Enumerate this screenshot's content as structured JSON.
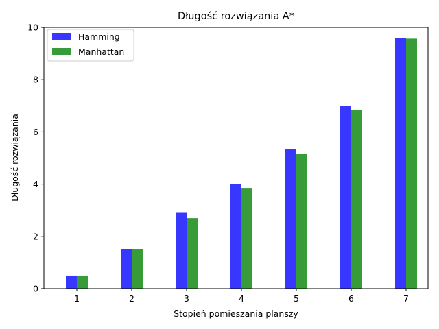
{
  "chart_data": {
    "type": "bar",
    "title": "Długość rozwiązania A*",
    "xlabel": "Stopień pomieszania planszy",
    "ylabel": "Długość rozwiązania",
    "categories": [
      "1",
      "2",
      "3",
      "4",
      "5",
      "6",
      "7"
    ],
    "series": [
      {
        "name": "Hamming",
        "color": "#3333ff",
        "values": [
          0.5,
          1.5,
          2.9,
          4.0,
          5.35,
          7.0,
          9.6
        ]
      },
      {
        "name": "Manhattan",
        "color": "#339933",
        "values": [
          0.5,
          1.5,
          2.7,
          3.83,
          5.15,
          6.85,
          9.57
        ]
      }
    ],
    "ylim": [
      0,
      10
    ],
    "yticks": [
      "0",
      "2",
      "4",
      "6",
      "8",
      "10"
    ],
    "grid": false,
    "legend_position": "top-left"
  }
}
